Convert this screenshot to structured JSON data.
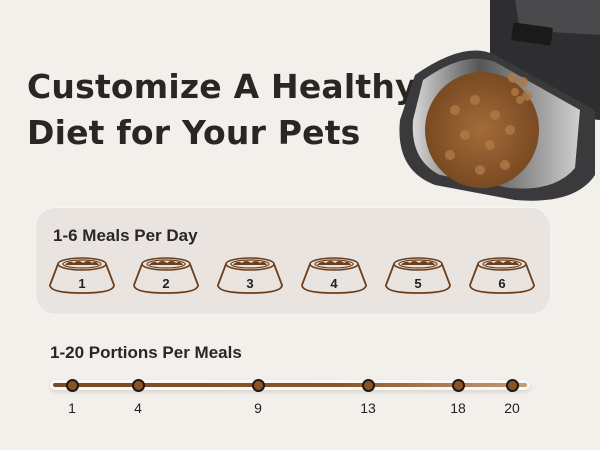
{
  "headline": {
    "line1": "Customize A Healthy",
    "line2": "Diet for Your Pets"
  },
  "meals": {
    "title": "1-6 Meals Per Day",
    "bowls": [
      "1",
      "2",
      "3",
      "4",
      "5",
      "6"
    ]
  },
  "portions": {
    "title": "1-20 Portions Per Meals",
    "min": 1,
    "max": 20,
    "ticks": [
      "1",
      "4",
      "9",
      "13",
      "18",
      "20"
    ]
  },
  "colors": {
    "background": "#f3efeb",
    "accent_brown": "#7b4a22",
    "text": "#2b2623"
  }
}
